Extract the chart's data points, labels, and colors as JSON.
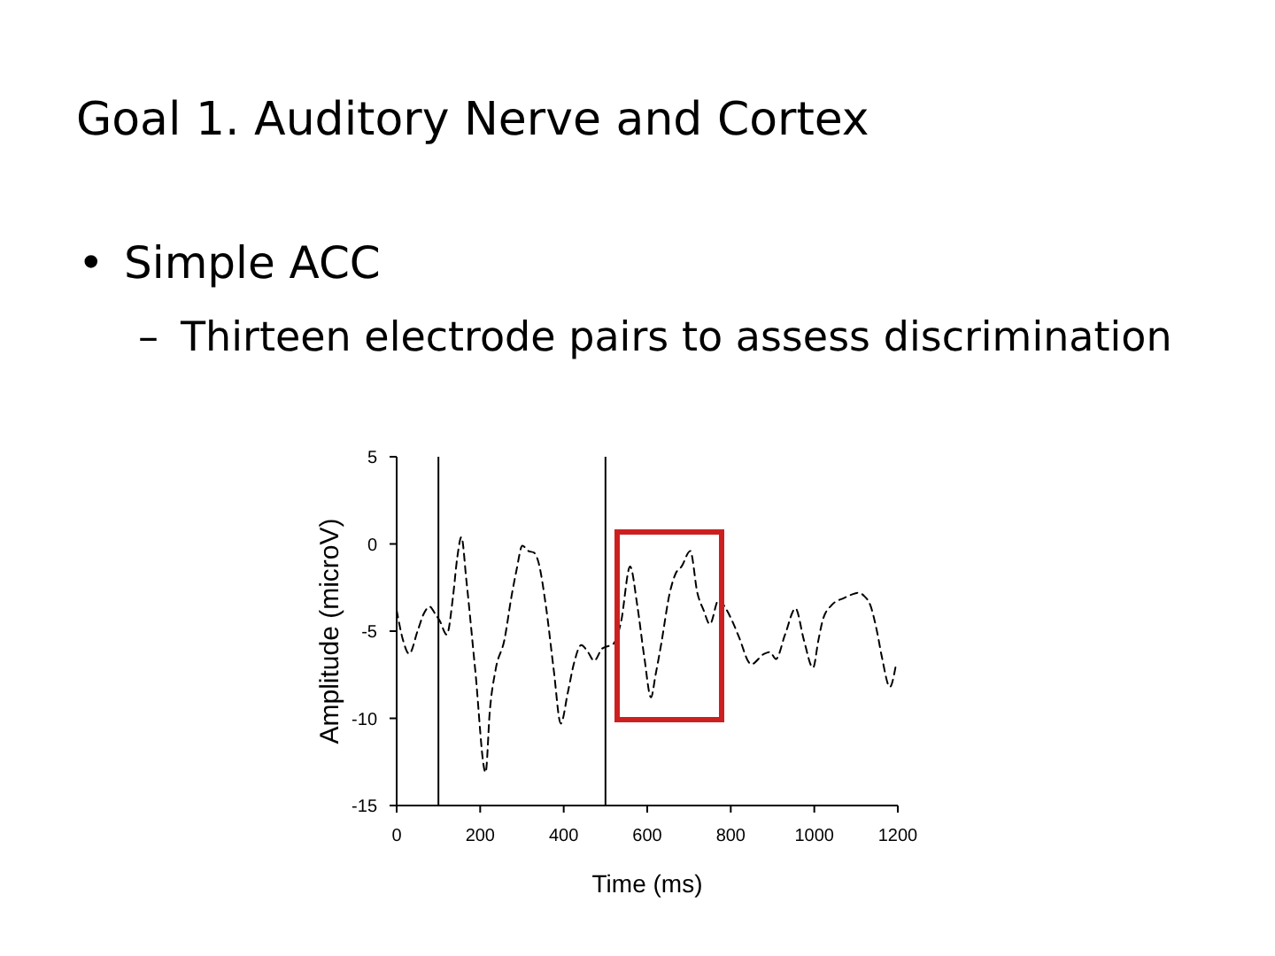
{
  "chart_data": {
    "type": "line",
    "title": "Goal 1. Auditory Nerve and Cortex",
    "annotations": [
      "• Simple ACC",
      "– Thirteen electrode pairs to assess discrimination"
    ],
    "xlabel": "Time (ms)",
    "ylabel": "Amplitude (microV)",
    "x": [
      0,
      15,
      30,
      50,
      65,
      79,
      92,
      103,
      120,
      135,
      145,
      155,
      167,
      188,
      213,
      223,
      237,
      258,
      275,
      287,
      301,
      315,
      329,
      339,
      357,
      376,
      393,
      410,
      425,
      442,
      458,
      473,
      492,
      513,
      520,
      537,
      559,
      576,
      593,
      609,
      620,
      633,
      654,
      668,
      682,
      703,
      720,
      735,
      750,
      771,
      788,
      805,
      819,
      849,
      880,
      894,
      908,
      930,
      955,
      975,
      997,
      1010,
      1021,
      1042,
      1071,
      1090,
      1106,
      1120,
      1134,
      1150,
      1162,
      1181,
      1195
    ],
    "series": [
      {
        "color": "#000000",
        "values": [
          -3.8,
          -5.5,
          -6.3,
          -5.0,
          -4.0,
          -3.6,
          -4.0,
          -4.4,
          -5.2,
          -3.0,
          -0.8,
          0.4,
          -2.1,
          -7.2,
          -13.1,
          -9.6,
          -7.2,
          -5.5,
          -3.0,
          -1.5,
          -0.1,
          -0.4,
          -0.5,
          -1.0,
          -3.5,
          -7.2,
          -10.3,
          -8.5,
          -6.8,
          -5.8,
          -6.2,
          -6.7,
          -6.0,
          -5.8,
          -5.7,
          -4.5,
          -1.3,
          -3.5,
          -6.5,
          -8.8,
          -7.5,
          -5.8,
          -2.8,
          -1.7,
          -1.3,
          -0.4,
          -2.8,
          -3.8,
          -4.6,
          -3.2,
          -3.7,
          -4.5,
          -5.3,
          -6.9,
          -6.3,
          -6.2,
          -6.6,
          -5.2,
          -3.7,
          -5.5,
          -7.1,
          -5.5,
          -4.3,
          -3.5,
          -3.1,
          -2.9,
          -2.8,
          -3.0,
          -3.5,
          -5.0,
          -6.5,
          -8.2,
          -7.0
        ]
      }
    ],
    "xlim": [
      0,
      1200
    ],
    "xticks": [
      0,
      200,
      400,
      600,
      800,
      1000,
      1200
    ],
    "ylim": [
      -15,
      5
    ],
    "yticks": [
      -15,
      -10,
      -5,
      0,
      5
    ],
    "ref_lines": [
      {
        "axis": "x",
        "value": 100,
        "color": "#000000"
      },
      {
        "axis": "x",
        "value": 500,
        "color": "#000000"
      }
    ],
    "line_style": "dashed"
  }
}
